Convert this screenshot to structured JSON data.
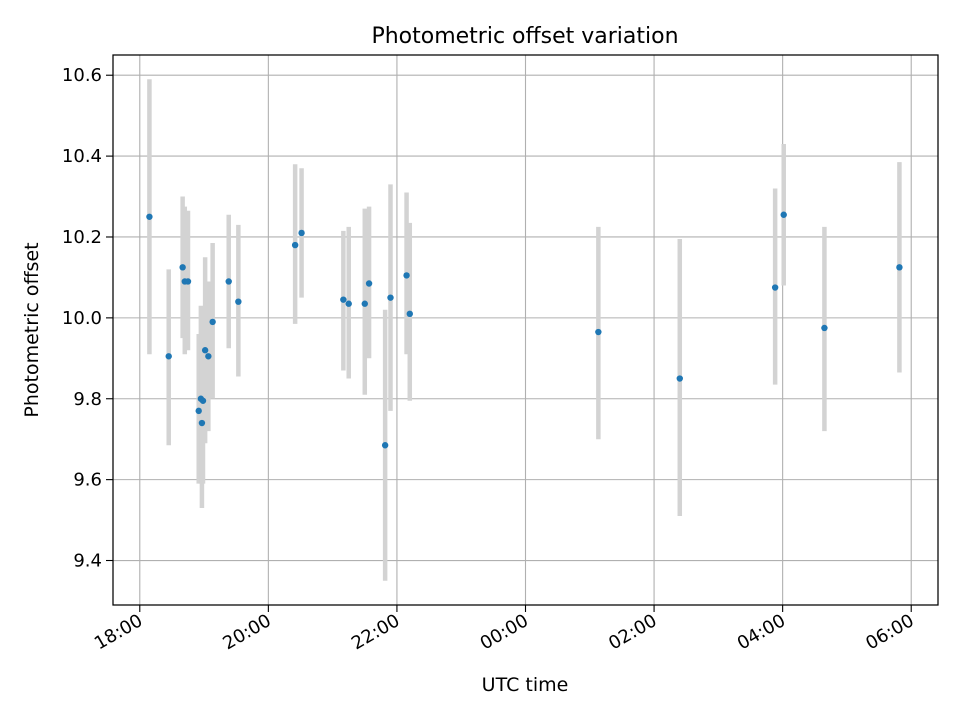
{
  "chart_data": {
    "type": "scatter",
    "title": "Photometric offset variation",
    "xlabel": "UTC time",
    "ylabel": "Photometric offset",
    "x_axis_type": "time",
    "xlim": [
      "17:35",
      "06:25"
    ],
    "ylim": [
      9.29,
      10.65
    ],
    "x_ticks": [
      "18:00",
      "20:00",
      "22:00",
      "00:00",
      "02:00",
      "04:00",
      "06:00"
    ],
    "y_ticks": [
      "9.4",
      "9.6",
      "9.8",
      "10.0",
      "10.2",
      "10.4",
      "10.6"
    ],
    "grid": true,
    "marker_color": "#1f77b4",
    "errorbar_color": "#d3d3d3",
    "points": [
      {
        "t": "18:09",
        "y": 10.25,
        "lo": 9.91,
        "hi": 10.59
      },
      {
        "t": "18:27",
        "y": 9.905,
        "lo": 9.685,
        "hi": 10.12
      },
      {
        "t": "18:40",
        "y": 10.125,
        "lo": 9.95,
        "hi": 10.3
      },
      {
        "t": "18:42",
        "y": 10.09,
        "lo": 9.91,
        "hi": 10.275
      },
      {
        "t": "18:45",
        "y": 10.09,
        "lo": 9.92,
        "hi": 10.265
      },
      {
        "t": "18:55",
        "y": 9.77,
        "lo": 9.59,
        "hi": 9.96
      },
      {
        "t": "18:57",
        "y": 9.8,
        "lo": 9.59,
        "hi": 10.03
      },
      {
        "t": "18:58",
        "y": 9.74,
        "lo": 9.53,
        "hi": 9.96
      },
      {
        "t": "18:59",
        "y": 9.795,
        "lo": 9.59,
        "hi": 10.0
      },
      {
        "t": "19:01",
        "y": 9.92,
        "lo": 9.69,
        "hi": 10.15
      },
      {
        "t": "19:04",
        "y": 9.905,
        "lo": 9.72,
        "hi": 10.09
      },
      {
        "t": "19:08",
        "y": 9.99,
        "lo": 9.8,
        "hi": 10.185
      },
      {
        "t": "19:23",
        "y": 10.09,
        "lo": 9.925,
        "hi": 10.255
      },
      {
        "t": "19:32",
        "y": 10.04,
        "lo": 9.855,
        "hi": 10.23
      },
      {
        "t": "20:25",
        "y": 10.18,
        "lo": 9.985,
        "hi": 10.38
      },
      {
        "t": "20:31",
        "y": 10.21,
        "lo": 10.05,
        "hi": 10.37
      },
      {
        "t": "21:10",
        "y": 10.045,
        "lo": 9.87,
        "hi": 10.215
      },
      {
        "t": "21:15",
        "y": 10.035,
        "lo": 9.85,
        "hi": 10.225
      },
      {
        "t": "21:30",
        "y": 10.035,
        "lo": 9.81,
        "hi": 10.27
      },
      {
        "t": "21:34",
        "y": 10.085,
        "lo": 9.9,
        "hi": 10.275
      },
      {
        "t": "21:49",
        "y": 9.685,
        "lo": 9.35,
        "hi": 10.02
      },
      {
        "t": "21:54",
        "y": 10.05,
        "lo": 9.77,
        "hi": 10.33
      },
      {
        "t": "22:09",
        "y": 10.105,
        "lo": 9.91,
        "hi": 10.31
      },
      {
        "t": "22:12",
        "y": 10.01,
        "lo": 9.795,
        "hi": 10.235
      },
      {
        "t": "01:08",
        "y": 9.965,
        "lo": 9.7,
        "hi": 10.225
      },
      {
        "t": "02:24",
        "y": 9.85,
        "lo": 9.51,
        "hi": 10.195
      },
      {
        "t": "03:53",
        "y": 10.075,
        "lo": 9.835,
        "hi": 10.32
      },
      {
        "t": "04:01",
        "y": 10.255,
        "lo": 10.08,
        "hi": 10.43
      },
      {
        "t": "04:39",
        "y": 9.975,
        "lo": 9.72,
        "hi": 10.225
      },
      {
        "t": "05:49",
        "y": 10.125,
        "lo": 9.865,
        "hi": 10.385
      }
    ]
  }
}
